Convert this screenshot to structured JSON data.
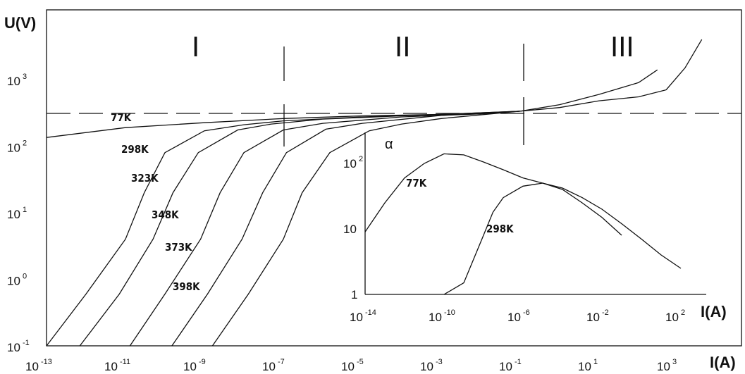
{
  "chart_data": [
    {
      "type": "line",
      "title": "",
      "xlabel": "I(A)",
      "ylabel": "U(V)",
      "x_scale": "log",
      "y_scale": "log",
      "x_ticks": [
        {
          "base": "10",
          "exp": "-13"
        },
        {
          "base": "10",
          "exp": "-11"
        },
        {
          "base": "10",
          "exp": "-9"
        },
        {
          "base": "10",
          "exp": "-7"
        },
        {
          "base": "10",
          "exp": "-5"
        },
        {
          "base": "10",
          "exp": "-3"
        },
        {
          "base": "10",
          "exp": "-1"
        },
        {
          "base": "10",
          "exp": "1"
        },
        {
          "base": "10",
          "exp": "3"
        }
      ],
      "y_ticks": [
        {
          "base": "10",
          "exp": "-1"
        },
        {
          "base": "10",
          "exp": "0"
        },
        {
          "base": "10",
          "exp": "1"
        },
        {
          "base": "10",
          "exp": "2"
        },
        {
          "base": "10",
          "exp": "3"
        }
      ],
      "regions": [
        "I",
        "II",
        "III"
      ],
      "region_boundaries_x": [
        1e-07,
        0.14
      ],
      "reference_line_y": 300,
      "series": [
        {
          "name": "77K",
          "points": [
            [
              1e-13,
              135
            ],
            [
              1e-11,
              190
            ],
            [
              1e-09,
              225
            ],
            [
              1e-07,
              260
            ],
            [
              1e-05,
              285
            ],
            [
              0.001,
              300
            ],
            [
              0.1,
              335
            ],
            [
              1,
              420
            ],
            [
              10,
              600
            ],
            [
              100,
              900
            ],
            [
              300,
              1400
            ]
          ]
        },
        {
          "name": "298K",
          "points": [
            [
              1e-13,
              0.1
            ],
            [
              1e-12,
              0.6
            ],
            [
              1e-11,
              4
            ],
            [
              3e-11,
              20
            ],
            [
              1e-10,
              80
            ],
            [
              1e-09,
              170
            ],
            [
              1e-08,
              210
            ],
            [
              1e-07,
              240
            ],
            [
              1e-05,
              275
            ],
            [
              0.001,
              300
            ],
            [
              0.1,
              335
            ],
            [
              1,
              380
            ],
            [
              10,
              480
            ],
            [
              100,
              550
            ],
            [
              500,
              700
            ],
            [
              1500,
              1500
            ],
            [
              4000,
              4000
            ]
          ]
        },
        {
          "name": "323K",
          "points": [
            [
              7e-13,
              0.1
            ],
            [
              7e-12,
              0.6
            ],
            [
              5e-11,
              4
            ],
            [
              1.6e-10,
              20
            ],
            [
              7e-10,
              80
            ],
            [
              7e-09,
              175
            ],
            [
              5e-08,
              215
            ],
            [
              1e-06,
              255
            ],
            [
              0.0001,
              285
            ],
            [
              0.01,
              310
            ],
            [
              0.1,
              335
            ]
          ]
        },
        {
          "name": "348K",
          "points": [
            [
              1.3e-11,
              0.1
            ],
            [
              1e-10,
              0.6
            ],
            [
              8e-10,
              4
            ],
            [
              2.5e-09,
              20
            ],
            [
              1e-08,
              80
            ],
            [
              1e-07,
              175
            ],
            [
              1e-06,
              220
            ],
            [
              0.0001,
              275
            ],
            [
              0.01,
              305
            ],
            [
              0.1,
              335
            ]
          ]
        },
        {
          "name": "373K",
          "points": [
            [
              1.5e-10,
              0.1
            ],
            [
              1.2e-09,
              0.6
            ],
            [
              9e-09,
              4
            ],
            [
              3e-08,
              20
            ],
            [
              1.2e-07,
              80
            ],
            [
              1.2e-06,
              180
            ],
            [
              1e-05,
              220
            ],
            [
              0.001,
              290
            ],
            [
              0.1,
              335
            ]
          ]
        },
        {
          "name": "398K",
          "points": [
            [
              1.6e-09,
              0.1
            ],
            [
              1.3e-08,
              0.6
            ],
            [
              1e-07,
              4
            ],
            [
              3e-07,
              20
            ],
            [
              1.5e-06,
              80
            ],
            [
              1.5e-05,
              170
            ],
            [
              0.0001,
              215
            ],
            [
              0.001,
              260
            ],
            [
              0.1,
              335
            ]
          ]
        }
      ]
    },
    {
      "type": "line",
      "title": "",
      "xlabel": "I(A)",
      "ylabel": "α",
      "x_scale": "log",
      "y_scale": "log",
      "x_ticks": [
        {
          "base": "10",
          "exp": "-14"
        },
        {
          "base": "10",
          "exp": "-10"
        },
        {
          "base": "10",
          "exp": "-6"
        },
        {
          "base": "10",
          "exp": "-2"
        },
        {
          "base": "10",
          "exp": "2"
        }
      ],
      "y_ticks": [
        {
          "base": "1",
          "exp": ""
        },
        {
          "base": "10",
          "exp": ""
        },
        {
          "base": "10",
          "exp": "2"
        }
      ],
      "series": [
        {
          "name": "77K",
          "points": [
            [
              1e-14,
              9
            ],
            [
              1e-13,
              25
            ],
            [
              1e-12,
              60
            ],
            [
              1e-11,
              100
            ],
            [
              1e-10,
              140
            ],
            [
              1e-09,
              135
            ],
            [
              1e-08,
              105
            ],
            [
              1e-07,
              80
            ],
            [
              1e-06,
              60
            ],
            [
              1e-05,
              50
            ],
            [
              0.0001,
              40
            ],
            [
              0.001,
              25
            ],
            [
              0.01,
              15
            ],
            [
              0.1,
              8
            ]
          ]
        },
        {
          "name": "298K",
          "points": [
            [
              1e-10,
              1
            ],
            [
              1e-09,
              1.5
            ],
            [
              1e-08,
              8
            ],
            [
              3e-08,
              18
            ],
            [
              1e-07,
              30
            ],
            [
              1e-06,
              45
            ],
            [
              1e-05,
              50
            ],
            [
              0.0001,
              42
            ],
            [
              0.001,
              30
            ],
            [
              0.01,
              20
            ],
            [
              0.1,
              12
            ],
            [
              1,
              7
            ],
            [
              10,
              4
            ],
            [
              100,
              2.5
            ]
          ]
        }
      ]
    }
  ],
  "labels": {
    "main_ylabel": "U(V)",
    "main_xlabel": "I(A)",
    "inset_ylabel": "α",
    "inset_xlabel": "I(A)",
    "region_1": "I",
    "region_2": "II",
    "region_3": "III",
    "t77": "77K",
    "t298": "298K",
    "t323": "323K",
    "t348": "348K",
    "t373": "373K",
    "t398": "398K",
    "inset_t77": "77K",
    "inset_t298": "298K"
  }
}
